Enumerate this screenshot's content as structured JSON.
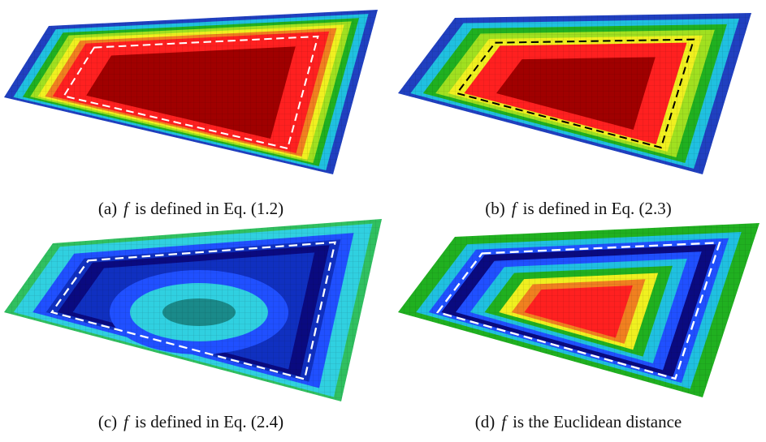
{
  "panels": [
    {
      "label": "(a)",
      "variable": "f",
      "text": "is defined in Eq. (1.2)"
    },
    {
      "label": "(b)",
      "variable": "f",
      "text": "is defined in Eq. (2.3)"
    },
    {
      "label": "(c)",
      "variable": "f",
      "text": "is defined in Eq. (2.4)"
    },
    {
      "label": "(d)",
      "variable": "f",
      "text": "is the Euclidean distance"
    }
  ]
}
